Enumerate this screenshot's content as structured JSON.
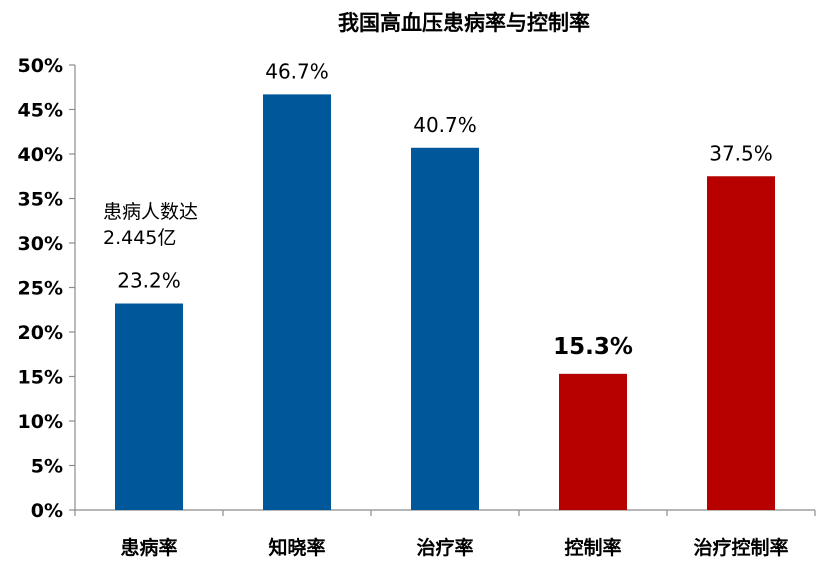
{
  "chart_data": {
    "type": "bar",
    "title": "我国高血压患病率与控制率",
    "categories": [
      "患病率",
      "知晓率",
      "治疗率",
      "控制率",
      "治疗控制率"
    ],
    "values": [
      23.2,
      46.7,
      40.7,
      15.3,
      37.5
    ],
    "data_labels": [
      "23.2%",
      "46.7%",
      "40.7%",
      "15.3%",
      "37.5%"
    ],
    "bar_colors": [
      "#00589A",
      "#00589A",
      "#00589A",
      "#B70000",
      "#B70000"
    ],
    "label_colors": [
      "#000000",
      "#000000",
      "#000000",
      "#B70000",
      "#000000"
    ],
    "highlight_index": 3,
    "ylim": [
      0,
      50
    ],
    "yticks": [
      0,
      5,
      10,
      15,
      20,
      25,
      30,
      35,
      40,
      45,
      50
    ],
    "ytick_labels": [
      "0%",
      "5%",
      "10%",
      "15%",
      "20%",
      "25%",
      "30%",
      "35%",
      "40%",
      "45%",
      "50%"
    ],
    "grid": false,
    "xlabel": "",
    "ylabel": "",
    "annotation": {
      "lines": [
        "患病人数达",
        "2.445亿"
      ],
      "category_index": 0
    }
  }
}
